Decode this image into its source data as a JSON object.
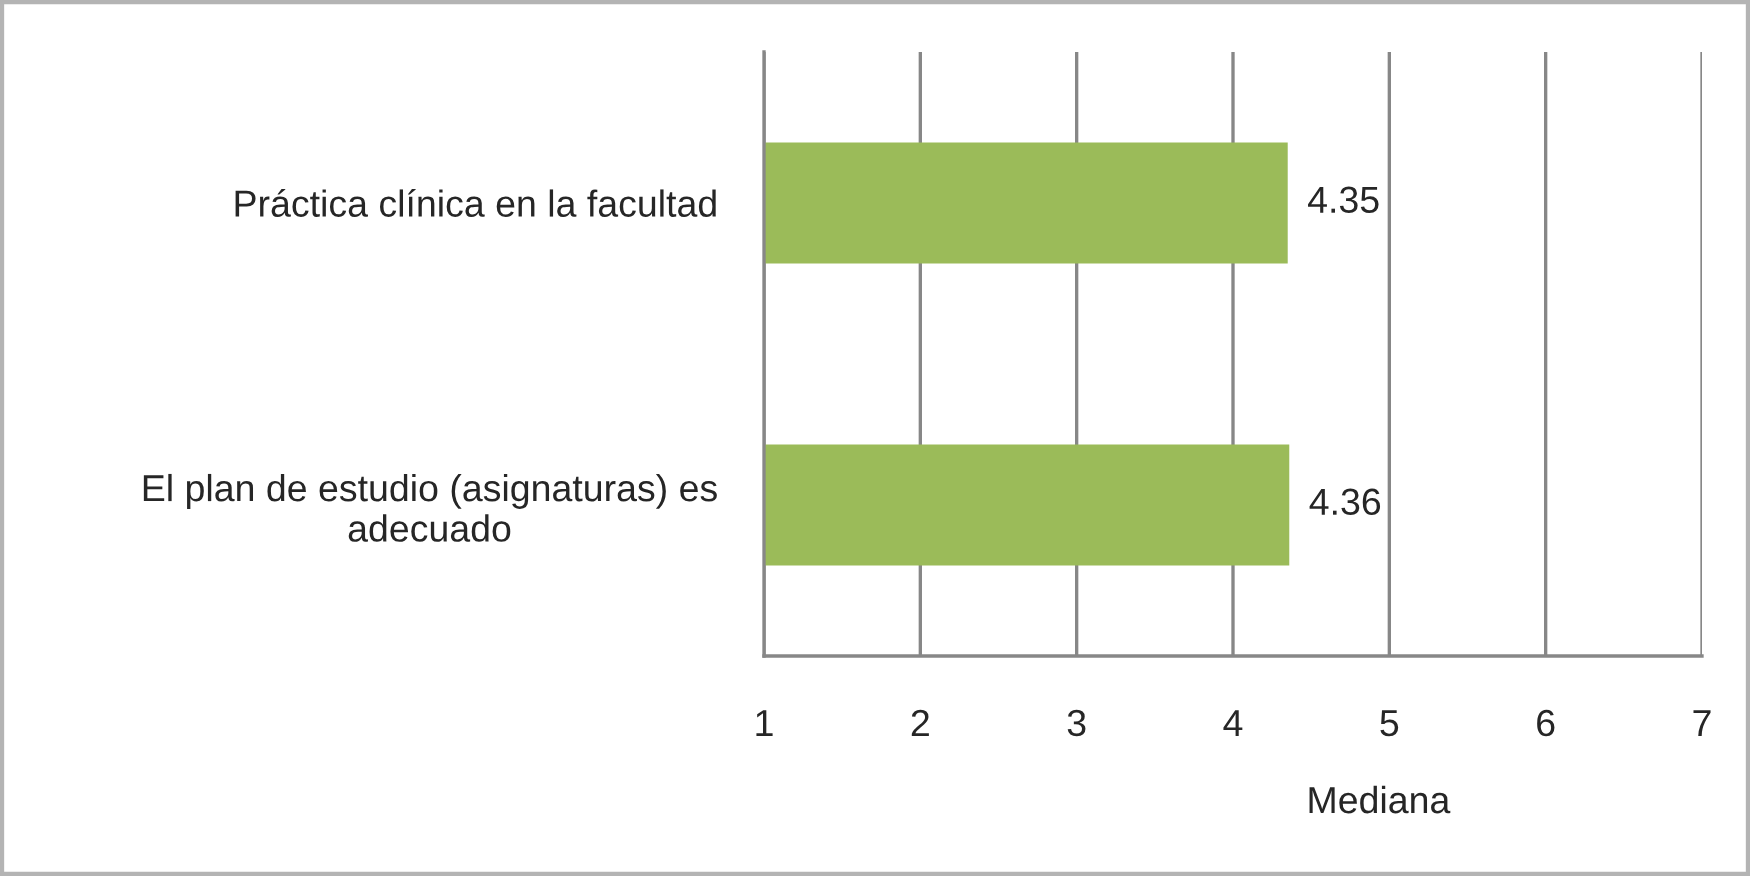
{
  "chart_data": {
    "type": "bar",
    "orientation": "horizontal",
    "categories": [
      "Práctica clínica en la facultad",
      "El plan de estudio (asignaturas) es adecuado"
    ],
    "values": [
      4.35,
      4.36
    ],
    "color": "#9bbb59",
    "xlim": [
      1,
      7
    ],
    "xticks": [
      1,
      2,
      3,
      4,
      5,
      6,
      7
    ],
    "xlabel": "Mediana",
    "grid": "x",
    "data_labels": true
  }
}
